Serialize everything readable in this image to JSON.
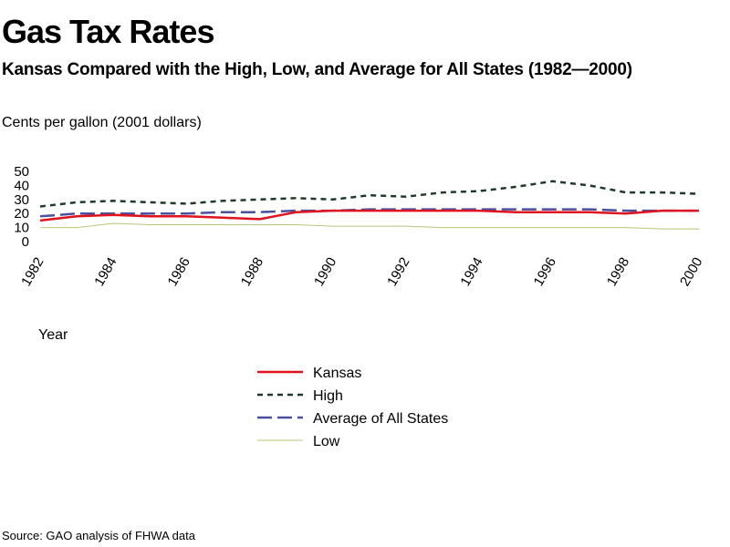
{
  "title": "Gas Tax Rates",
  "subtitle": "Kansas Compared with the High, Low, and Average for All States (1982—2000)",
  "source": "Source: GAO analysis of FHWA data",
  "colors": {
    "kansas": "#e0141e",
    "high": "#1f3a2a",
    "average": "#4a4f9e",
    "low": "#b5c77a"
  },
  "chart_data": {
    "type": "line",
    "ylabel": "Cents per gallon (2001 dollars)",
    "xlabel": "Year",
    "ylim": [
      0,
      50
    ],
    "yticks": [
      0,
      10,
      20,
      30,
      40,
      50
    ],
    "xticks": [
      1982,
      1984,
      1986,
      1988,
      1990,
      1992,
      1994,
      1996,
      1998,
      2000
    ],
    "x": [
      1982,
      1983,
      1984,
      1985,
      1986,
      1987,
      1988,
      1989,
      1990,
      1991,
      1992,
      1993,
      1994,
      1995,
      1996,
      1997,
      1998,
      1999,
      2000
    ],
    "legend_position": "bottom",
    "series": [
      {
        "name": "Kansas",
        "style": "solid",
        "color": "#e0141e",
        "values": [
          15,
          18,
          19,
          18,
          18,
          17,
          16,
          21,
          22,
          22,
          22,
          22,
          22,
          21,
          21,
          21,
          20,
          22,
          22
        ]
      },
      {
        "name": "High",
        "style": "dotted",
        "color": "#1f3a2a",
        "values": [
          25,
          28,
          29,
          28,
          27,
          29,
          30,
          31,
          30,
          33,
          32,
          35,
          36,
          39,
          43,
          40,
          35,
          35,
          34
        ]
      },
      {
        "name": "Average of All States",
        "style": "dashed",
        "color": "#4a4f9e",
        "values": [
          18,
          20,
          20,
          20,
          20,
          21,
          21,
          22,
          22,
          23,
          23,
          23,
          23,
          23,
          23,
          23,
          22,
          22,
          22
        ]
      },
      {
        "name": "Low",
        "style": "solid-thin",
        "color": "#b5c77a",
        "values": [
          10,
          10,
          13,
          12,
          12,
          12,
          12,
          12,
          11,
          11,
          11,
          10,
          10,
          10,
          10,
          10,
          10,
          9,
          9
        ]
      }
    ]
  }
}
